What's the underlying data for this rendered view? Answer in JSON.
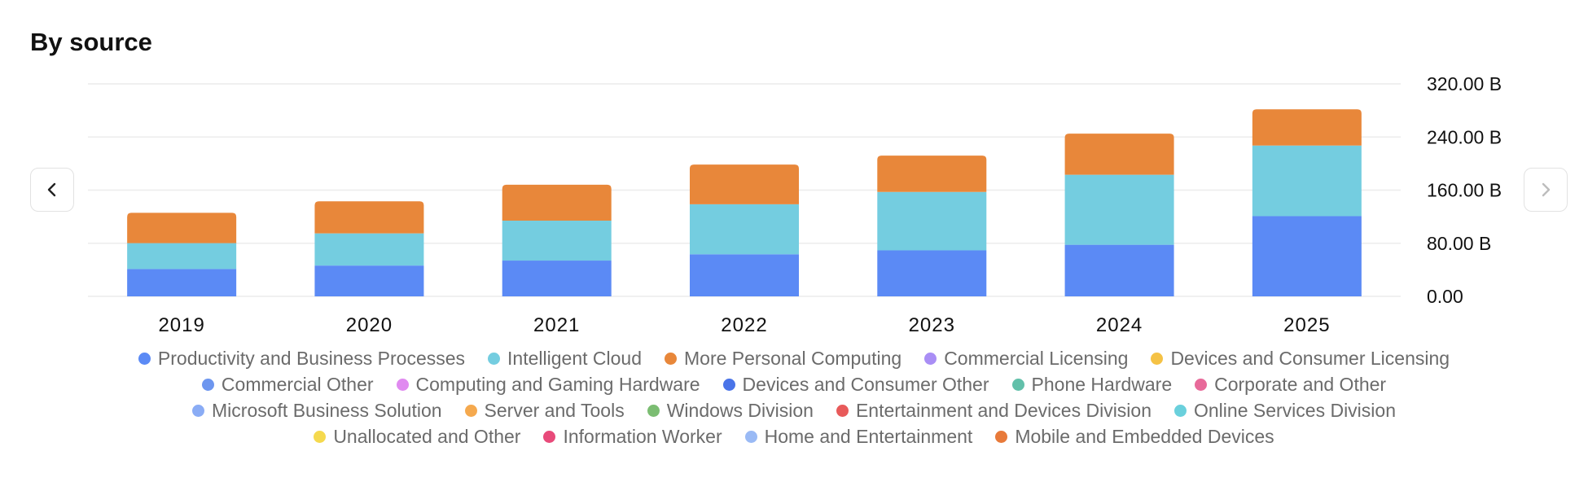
{
  "header": {
    "title": "By source"
  },
  "nav": {
    "prev_icon": "chevron-left-icon",
    "next_icon": "chevron-right-icon"
  },
  "chart_data": {
    "type": "bar",
    "stacked": true,
    "title": "By source",
    "xlabel": "",
    "ylabel": "",
    "categories": [
      "2019",
      "2020",
      "2021",
      "2022",
      "2023",
      "2024",
      "2025"
    ],
    "yticks": [
      "0.00",
      "80.00 B",
      "160.00 B",
      "240.00 B",
      "320.00 B"
    ],
    "ylim": [
      0,
      320
    ],
    "grid": true,
    "y_axis_position": "right",
    "legend_position": "bottom",
    "series": [
      {
        "name": "Productivity and Business Processes",
        "color": "#5b8af5",
        "values": [
          41.2,
          46.4,
          53.9,
          63.4,
          69.3,
          77.7,
          120.8
        ]
      },
      {
        "name": "Intelligent Cloud",
        "color": "#74cde0",
        "values": [
          39.0,
          48.4,
          60.1,
          75.3,
          87.9,
          105.4,
          106.3
        ]
      },
      {
        "name": "More Personal Computing",
        "color": "#e8873a",
        "values": [
          45.7,
          48.3,
          54.1,
          59.7,
          54.7,
          62.0,
          54.6
        ]
      }
    ],
    "legend": [
      {
        "name": "Productivity and Business Processes",
        "color": "#5b8af5"
      },
      {
        "name": "Intelligent Cloud",
        "color": "#74cde0"
      },
      {
        "name": "More Personal Computing",
        "color": "#e8873a"
      },
      {
        "name": "Commercial Licensing",
        "color": "#a98ef5"
      },
      {
        "name": "Devices and Consumer Licensing",
        "color": "#f5c245"
      },
      {
        "name": "Commercial Other",
        "color": "#6d96ef"
      },
      {
        "name": "Computing and Gaming Hardware",
        "color": "#e08af0"
      },
      {
        "name": "Devices and Consumer Other",
        "color": "#4a74e8"
      },
      {
        "name": "Phone Hardware",
        "color": "#62c0aa"
      },
      {
        "name": "Corporate and Other",
        "color": "#e86a9a"
      },
      {
        "name": "Microsoft Business Solution",
        "color": "#8aacf5"
      },
      {
        "name": "Server and Tools",
        "color": "#f5a94e"
      },
      {
        "name": "Windows Division",
        "color": "#7bbd72"
      },
      {
        "name": "Entertainment and Devices Division",
        "color": "#e85a5a"
      },
      {
        "name": "Online Services Division",
        "color": "#6ad0dc"
      },
      {
        "name": "Unallocated and Other",
        "color": "#f5d94e"
      },
      {
        "name": "Information Worker",
        "color": "#e84a7a"
      },
      {
        "name": "Home and Entertainment",
        "color": "#9abaf5"
      },
      {
        "name": "Mobile and Embedded Devices",
        "color": "#e87a3a"
      }
    ]
  }
}
